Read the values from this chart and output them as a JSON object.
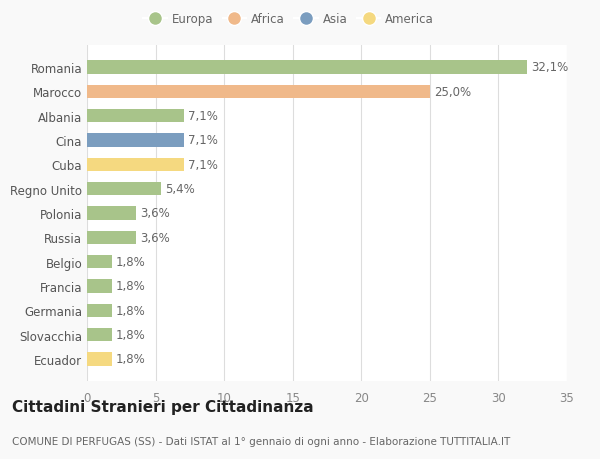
{
  "categories": [
    "Romania",
    "Marocco",
    "Albania",
    "Cina",
    "Cuba",
    "Regno Unito",
    "Polonia",
    "Russia",
    "Belgio",
    "Francia",
    "Germania",
    "Slovacchia",
    "Ecuador"
  ],
  "values": [
    32.1,
    25.0,
    7.1,
    7.1,
    7.1,
    5.4,
    3.6,
    3.6,
    1.8,
    1.8,
    1.8,
    1.8,
    1.8
  ],
  "labels": [
    "32,1%",
    "25,0%",
    "7,1%",
    "7,1%",
    "7,1%",
    "5,4%",
    "3,6%",
    "3,6%",
    "1,8%",
    "1,8%",
    "1,8%",
    "1,8%",
    "1,8%"
  ],
  "colors": [
    "#a8c48a",
    "#f0b98a",
    "#a8c48a",
    "#7b9dbf",
    "#f5d980",
    "#a8c48a",
    "#a8c48a",
    "#a8c48a",
    "#a8c48a",
    "#a8c48a",
    "#a8c48a",
    "#a8c48a",
    "#f5d980"
  ],
  "legend_labels": [
    "Europa",
    "Africa",
    "Asia",
    "America"
  ],
  "legend_colors": [
    "#a8c48a",
    "#f0b98a",
    "#7b9dbf",
    "#f5d980"
  ],
  "xlim": [
    0,
    35
  ],
  "xticks": [
    0,
    5,
    10,
    15,
    20,
    25,
    30,
    35
  ],
  "title": "Cittadini Stranieri per Cittadinanza",
  "subtitle": "COMUNE DI PERFUGAS (SS) - Dati ISTAT al 1° gennaio di ogni anno - Elaborazione TUTTITALIA.IT",
  "background_color": "#f9f9f9",
  "plot_background": "#ffffff",
  "grid_color": "#dddddd",
  "bar_height": 0.55,
  "label_fontsize": 8.5,
  "title_fontsize": 11,
  "subtitle_fontsize": 7.5,
  "ytick_fontsize": 8.5,
  "xtick_fontsize": 8.5,
  "value_label_fontsize": 8.5
}
